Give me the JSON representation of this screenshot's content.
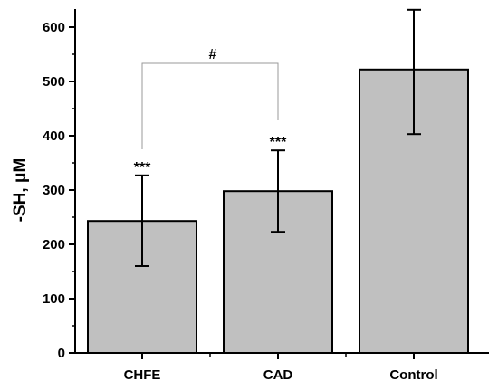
{
  "chart_data": {
    "type": "bar",
    "categories": [
      "CHFE",
      "CAD",
      "Control"
    ],
    "values": [
      243,
      298,
      522
    ],
    "error_plus": [
      84,
      75,
      110
    ],
    "error_minus": [
      83,
      75,
      119
    ],
    "significance": [
      "***",
      "***",
      ""
    ],
    "bracket": {
      "from": 0,
      "to": 1,
      "label": "#"
    },
    "xlabel": "",
    "ylabel": "-SH, μM",
    "ylim": [
      0,
      600
    ],
    "yticks": [
      0,
      100,
      200,
      300,
      400,
      500,
      600
    ],
    "grid": false,
    "legend": "none",
    "bar_color": "#c0c0c0",
    "bracket_color": "#999999"
  }
}
